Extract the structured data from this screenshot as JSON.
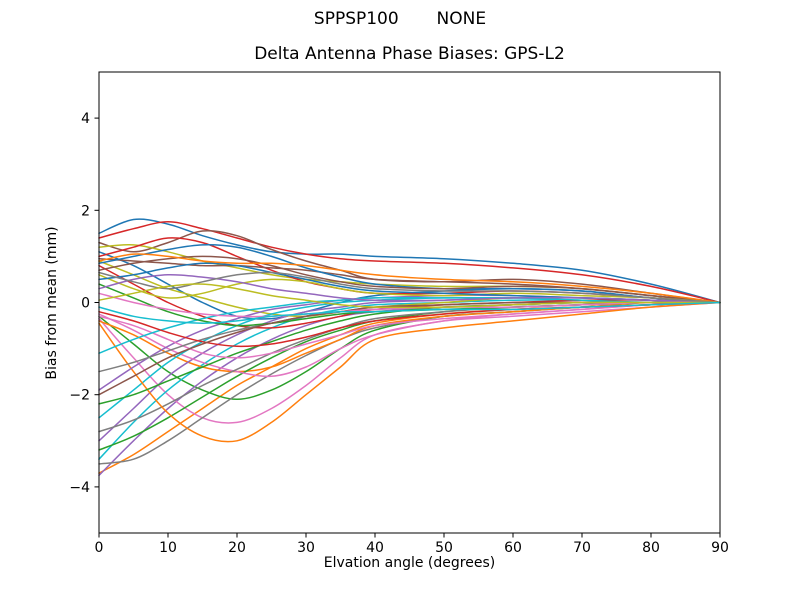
{
  "chart_data": {
    "type": "line",
    "suptitle": "SPPSP100       NONE",
    "title": "Delta Antenna Phase Biases: GPS-L2",
    "xlabel": "Elvation angle (degrees)",
    "ylabel": "Bias from mean (mm)",
    "xlim": [
      0,
      90
    ],
    "ylim": [
      -5,
      5
    ],
    "x_ticks": [
      0,
      10,
      20,
      30,
      40,
      50,
      60,
      70,
      80,
      90
    ],
    "y_ticks": [
      -4,
      -2,
      0,
      2,
      4
    ],
    "grid": false,
    "legend": "none",
    "background": "#ffffff",
    "spine_color": "#000000",
    "palette": [
      "#1f77b4",
      "#ff7f0e",
      "#2ca02c",
      "#d62728",
      "#9467bd",
      "#8c564b",
      "#e377c2",
      "#7f7f7f",
      "#bcbd22",
      "#17becf"
    ],
    "x": [
      0,
      5,
      10,
      15,
      20,
      25,
      30,
      35,
      40,
      50,
      60,
      70,
      80,
      90
    ],
    "series": [
      {
        "values": [
          1.5,
          1.8,
          1.7,
          1.45,
          1.25,
          1.1,
          1.05,
          1.05,
          1.0,
          0.95,
          0.85,
          0.7,
          0.4,
          0
        ]
      },
      {
        "values": [
          -3.7,
          -3.3,
          -2.8,
          -2.3,
          -1.8,
          -1.4,
          -1.0,
          -0.7,
          -0.45,
          -0.25,
          -0.15,
          -0.1,
          -0.05,
          0
        ]
      },
      {
        "values": [
          -0.3,
          -0.9,
          -1.5,
          -1.9,
          -2.1,
          -1.9,
          -1.5,
          -1.0,
          -0.6,
          -0.3,
          -0.2,
          -0.1,
          -0.05,
          0
        ]
      },
      {
        "values": [
          1.4,
          1.6,
          1.75,
          1.6,
          1.4,
          1.2,
          1.05,
          0.95,
          0.9,
          0.85,
          0.75,
          0.6,
          0.35,
          0
        ]
      },
      {
        "values": [
          -3.75,
          -3.0,
          -2.3,
          -1.7,
          -1.2,
          -0.8,
          -0.5,
          -0.3,
          -0.2,
          -0.1,
          -0.05,
          0,
          0,
          0
        ]
      },
      {
        "values": [
          1.3,
          1.1,
          1.3,
          1.55,
          1.45,
          1.15,
          0.9,
          0.7,
          0.5,
          0.45,
          0.5,
          0.4,
          0.2,
          0
        ]
      },
      {
        "values": [
          -0.35,
          -1.2,
          -2.0,
          -2.5,
          -2.6,
          -2.3,
          -1.8,
          -1.2,
          -0.7,
          -0.4,
          -0.25,
          -0.15,
          -0.05,
          0
        ]
      },
      {
        "values": [
          -3.5,
          -3.4,
          -3.0,
          -2.5,
          -2.0,
          -1.55,
          -1.15,
          -0.8,
          -0.55,
          -0.3,
          -0.2,
          -0.1,
          -0.05,
          0
        ]
      },
      {
        "values": [
          1.2,
          1.25,
          1.1,
          0.9,
          0.75,
          0.6,
          0.5,
          0.45,
          0.4,
          0.35,
          0.35,
          0.3,
          0.15,
          0
        ]
      },
      {
        "values": [
          -3.4,
          -2.6,
          -1.9,
          -1.35,
          -0.9,
          -0.55,
          -0.3,
          -0.15,
          -0.05,
          0,
          0.05,
          0.05,
          0,
          0
        ]
      },
      {
        "values": [
          1.1,
          0.8,
          0.4,
          0.0,
          -0.3,
          -0.35,
          -0.2,
          0.0,
          0.15,
          0.25,
          0.3,
          0.25,
          0.1,
          0
        ]
      },
      {
        "values": [
          -0.4,
          -0.7,
          -1.1,
          -1.4,
          -1.5,
          -1.4,
          -1.1,
          -0.8,
          -0.5,
          -0.3,
          -0.2,
          -0.1,
          0,
          0
        ]
      },
      {
        "values": [
          -3.2,
          -2.9,
          -2.5,
          -2.05,
          -1.6,
          -1.2,
          -0.85,
          -0.6,
          -0.4,
          -0.2,
          -0.1,
          -0.05,
          0,
          0
        ]
      },
      {
        "values": [
          1.0,
          1.2,
          1.4,
          1.3,
          1.0,
          0.7,
          0.45,
          0.3,
          0.2,
          0.2,
          0.25,
          0.2,
          0.1,
          0
        ]
      },
      {
        "values": [
          -3.0,
          -2.3,
          -1.6,
          -1.1,
          -0.7,
          -0.4,
          -0.2,
          -0.1,
          0,
          0.05,
          0.1,
          0.1,
          0.05,
          0
        ]
      },
      {
        "values": [
          0.95,
          0.9,
          0.85,
          0.8,
          0.8,
          0.75,
          0.7,
          0.6,
          0.5,
          0.45,
          0.4,
          0.3,
          0.15,
          0
        ]
      },
      {
        "values": [
          -0.25,
          -0.6,
          -1.0,
          -1.3,
          -1.5,
          -1.6,
          -1.4,
          -1.0,
          -0.7,
          -0.4,
          -0.3,
          -0.2,
          -0.1,
          0
        ]
      },
      {
        "values": [
          -2.8,
          -2.55,
          -2.2,
          -1.8,
          -1.45,
          -1.1,
          -0.8,
          -0.55,
          -0.35,
          -0.2,
          -0.1,
          -0.05,
          0,
          0
        ]
      },
      {
        "values": [
          0.9,
          0.6,
          0.3,
          0.1,
          -0.1,
          -0.25,
          -0.3,
          -0.2,
          -0.1,
          0.0,
          0.1,
          0.1,
          0.05,
          0
        ]
      },
      {
        "values": [
          -2.5,
          -1.9,
          -1.3,
          -0.85,
          -0.5,
          -0.25,
          -0.1,
          0,
          0.05,
          0.1,
          0.1,
          0.1,
          0.05,
          0
        ]
      },
      {
        "values": [
          0.85,
          1.0,
          1.15,
          1.25,
          1.2,
          1.0,
          0.75,
          0.55,
          0.4,
          0.3,
          0.3,
          0.25,
          0.1,
          0
        ]
      },
      {
        "values": [
          -0.45,
          -1.5,
          -2.4,
          -2.9,
          -3.0,
          -2.6,
          -2.0,
          -1.4,
          -0.8,
          -0.55,
          -0.4,
          -0.25,
          -0.1,
          0
        ]
      },
      {
        "values": [
          -2.2,
          -2.0,
          -1.7,
          -1.4,
          -1.1,
          -0.85,
          -0.6,
          -0.4,
          -0.25,
          -0.1,
          -0.05,
          0,
          0,
          0
        ]
      },
      {
        "values": [
          0.8,
          0.4,
          0.0,
          -0.3,
          -0.5,
          -0.55,
          -0.45,
          -0.3,
          -0.15,
          -0.05,
          0.0,
          0.05,
          0.05,
          0
        ]
      },
      {
        "values": [
          -1.9,
          -1.4,
          -0.95,
          -0.6,
          -0.35,
          -0.15,
          -0.05,
          0.05,
          0.1,
          0.15,
          0.15,
          0.1,
          0.05,
          0
        ]
      },
      {
        "values": [
          0.7,
          0.85,
          0.95,
          1.0,
          0.95,
          0.8,
          0.6,
          0.45,
          0.35,
          0.3,
          0.35,
          0.3,
          0.15,
          0
        ]
      },
      {
        "values": [
          -0.3,
          -0.5,
          -0.8,
          -1.1,
          -1.2,
          -1.1,
          -0.9,
          -0.7,
          -0.5,
          -0.35,
          -0.25,
          -0.15,
          -0.05,
          0
        ]
      },
      {
        "values": [
          -1.5,
          -1.3,
          -1.05,
          -0.8,
          -0.6,
          -0.45,
          -0.3,
          -0.2,
          -0.15,
          -0.1,
          -0.05,
          0,
          0,
          0
        ]
      },
      {
        "values": [
          0.6,
          0.3,
          0.1,
          0.2,
          0.4,
          0.5,
          0.45,
          0.3,
          0.2,
          0.15,
          0.2,
          0.15,
          0.1,
          0
        ]
      },
      {
        "values": [
          -1.1,
          -0.8,
          -0.55,
          -0.35,
          -0.2,
          -0.1,
          0,
          0.05,
          0.1,
          0.1,
          0.1,
          0.05,
          0,
          0
        ]
      },
      {
        "values": [
          0.5,
          0.6,
          0.75,
          0.85,
          0.8,
          0.65,
          0.5,
          0.35,
          0.25,
          0.2,
          0.15,
          0.1,
          0.05,
          0
        ]
      },
      {
        "values": [
          0.9,
          1.05,
          1.0,
          0.9,
          0.85,
          0.85,
          0.8,
          0.7,
          0.6,
          0.5,
          0.45,
          0.35,
          0.2,
          0
        ]
      },
      {
        "values": [
          0.4,
          0.1,
          -0.2,
          -0.4,
          -0.5,
          -0.45,
          -0.35,
          -0.25,
          -0.2,
          -0.15,
          -0.1,
          -0.05,
          0,
          0
        ]
      },
      {
        "values": [
          -0.2,
          -0.4,
          -0.65,
          -0.85,
          -0.95,
          -0.9,
          -0.75,
          -0.55,
          -0.4,
          -0.25,
          -0.15,
          -0.1,
          -0.05,
          0
        ]
      },
      {
        "values": [
          0.3,
          0.5,
          0.6,
          0.55,
          0.45,
          0.3,
          0.2,
          0.1,
          0.05,
          0.05,
          0.1,
          0.1,
          0.05,
          0
        ]
      },
      {
        "values": [
          -2.0,
          -1.6,
          -1.2,
          -0.9,
          -0.65,
          -0.45,
          -0.3,
          -0.2,
          -0.1,
          -0.05,
          0,
          0,
          0,
          0
        ]
      },
      {
        "values": [
          0.2,
          0.0,
          -0.15,
          -0.25,
          -0.3,
          -0.3,
          -0.25,
          -0.2,
          -0.15,
          -0.1,
          -0.1,
          -0.05,
          0,
          0
        ]
      },
      {
        "values": [
          0.65,
          0.45,
          0.3,
          0.45,
          0.6,
          0.65,
          0.55,
          0.4,
          0.3,
          0.25,
          0.25,
          0.2,
          0.1,
          0
        ]
      },
      {
        "values": [
          0.05,
          0.2,
          0.35,
          0.4,
          0.3,
          0.15,
          0.05,
          -0.05,
          -0.1,
          -0.1,
          -0.05,
          0,
          0,
          0
        ]
      },
      {
        "values": [
          -0.1,
          -0.3,
          -0.4,
          -0.45,
          -0.4,
          -0.3,
          -0.25,
          -0.2,
          -0.2,
          -0.15,
          -0.15,
          -0.1,
          -0.05,
          0
        ]
      }
    ]
  }
}
